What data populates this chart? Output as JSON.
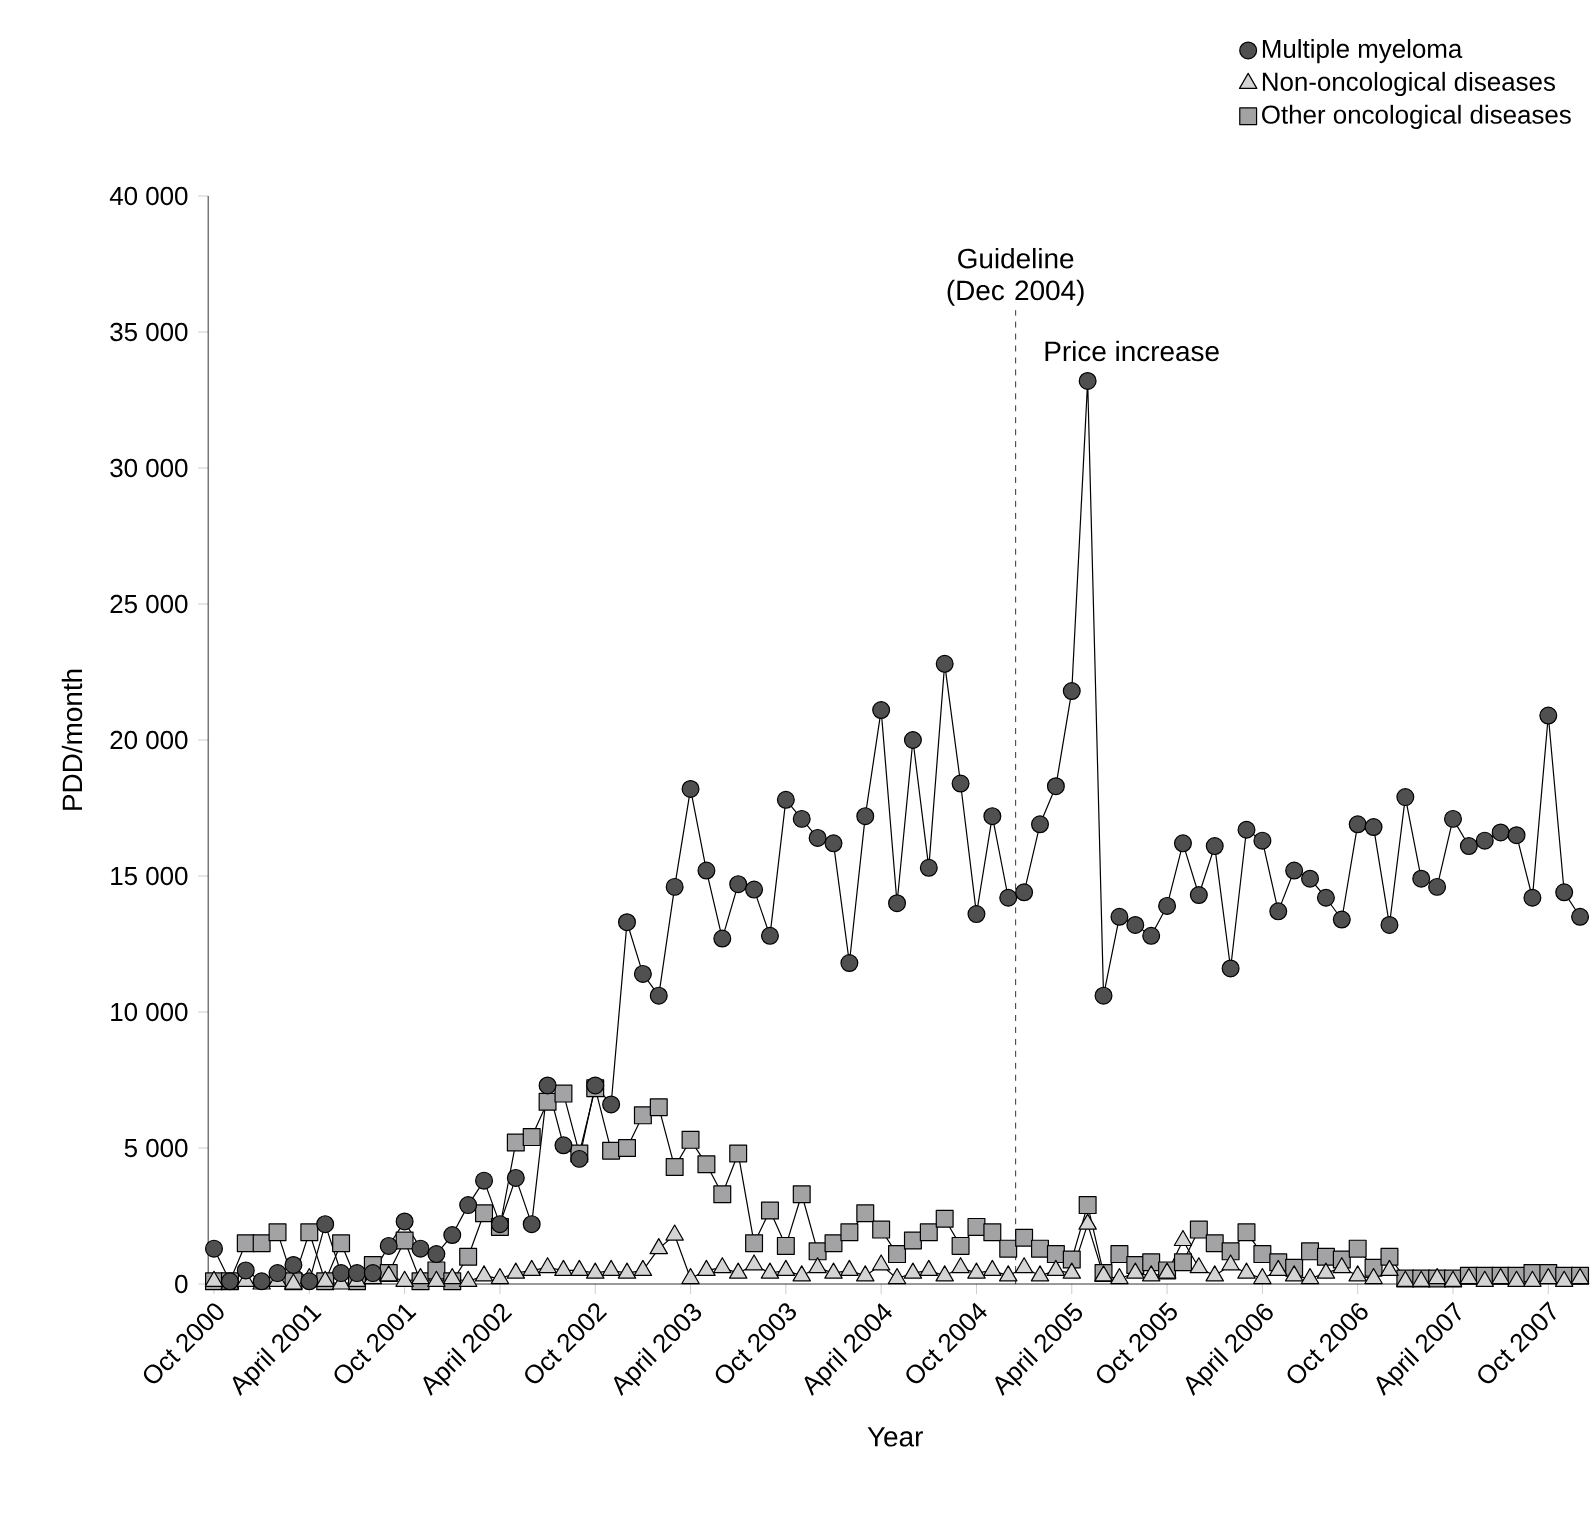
{
  "chart_data": {
    "type": "line",
    "xlabel": "Year",
    "ylabel": "PDD/month",
    "x": [
      "2000-10",
      "2000-11",
      "2000-12",
      "2001-01",
      "2001-02",
      "2001-03",
      "2001-04",
      "2001-05",
      "2001-06",
      "2001-07",
      "2001-08",
      "2001-09",
      "2001-10",
      "2001-11",
      "2001-12",
      "2002-01",
      "2002-02",
      "2002-03",
      "2002-04",
      "2002-05",
      "2002-06",
      "2002-07",
      "2002-08",
      "2002-09",
      "2002-10",
      "2002-11",
      "2002-12",
      "2003-01",
      "2003-02",
      "2003-03",
      "2003-04",
      "2003-05",
      "2003-06",
      "2003-07",
      "2003-08",
      "2003-09",
      "2003-10",
      "2003-11",
      "2003-12",
      "2004-01",
      "2004-02",
      "2004-03",
      "2004-04",
      "2004-05",
      "2004-06",
      "2004-07",
      "2004-08",
      "2004-09",
      "2004-10",
      "2004-11",
      "2004-12",
      "2005-01",
      "2005-02",
      "2005-03",
      "2005-04",
      "2005-05",
      "2005-06",
      "2005-07",
      "2005-08",
      "2005-09",
      "2005-10",
      "2005-11",
      "2005-12",
      "2006-01",
      "2006-02",
      "2006-03",
      "2006-04",
      "2006-05",
      "2006-06",
      "2006-07",
      "2006-08",
      "2006-09",
      "2006-10",
      "2006-11",
      "2006-12",
      "2007-01",
      "2007-02",
      "2007-03",
      "2007-04",
      "2007-05",
      "2007-06",
      "2007-07",
      "2007-08",
      "2007-09",
      "2007-10",
      "2007-11",
      "2007-12"
    ],
    "series": [
      {
        "name": "Multiple myeloma",
        "color": "#505050",
        "marker": "circle",
        "values": [
          1300,
          100,
          500,
          100,
          400,
          700,
          100,
          2200,
          400,
          400,
          400,
          1400,
          2300,
          1300,
          1100,
          1800,
          2900,
          3800,
          2200,
          3900,
          2200,
          7300,
          5100,
          4600,
          7300,
          6600,
          13300,
          11400,
          10600,
          14600,
          18200,
          15200,
          12700,
          14700,
          14500,
          12800,
          17800,
          17100,
          16400,
          16200,
          11800,
          17200,
          21100,
          14000,
          20000,
          15300,
          22800,
          18400,
          13600,
          17200,
          14200,
          14400,
          16900,
          18300,
          21800,
          33200,
          10600,
          13500,
          13200,
          12800,
          13900,
          16200,
          14300,
          16100,
          11600,
          16700,
          16300,
          13700,
          15200,
          14900,
          14200,
          13400,
          16900,
          16800,
          13200,
          17900,
          14900,
          14600,
          17100,
          16100,
          16300,
          16600,
          16500,
          14200,
          20900,
          14400,
          13500
        ]
      },
      {
        "name": "Non-oncological diseases",
        "color": "#d4d4d4",
        "marker": "triangle",
        "values": [
          100,
          0,
          100,
          0,
          100,
          0,
          200,
          100,
          0,
          100,
          200,
          300,
          100,
          200,
          100,
          200,
          100,
          300,
          200,
          400,
          500,
          600,
          500,
          500,
          400,
          500,
          400,
          500,
          1300,
          1800,
          200,
          500,
          600,
          400,
          700,
          400,
          500,
          300,
          600,
          400,
          500,
          300,
          700,
          200,
          400,
          500,
          300,
          600,
          400,
          500,
          300,
          600,
          300,
          500,
          400,
          2200,
          300,
          200,
          400,
          300,
          400,
          1600,
          600,
          300,
          700,
          400,
          200,
          500,
          300,
          200,
          400,
          600,
          300,
          200,
          500,
          100,
          100,
          200,
          100,
          200,
          100,
          200,
          100,
          100,
          200,
          100,
          200
        ]
      },
      {
        "name": "Other oncological diseases",
        "color": "#a3a3a5",
        "marker": "square",
        "values": [
          100,
          100,
          1500,
          1500,
          1900,
          100,
          1900,
          100,
          1500,
          100,
          700,
          400,
          1600,
          100,
          500,
          100,
          1000,
          2600,
          2100,
          5200,
          5400,
          6700,
          7000,
          4800,
          7200,
          4900,
          5000,
          6200,
          6500,
          4300,
          5300,
          4400,
          3300,
          4800,
          1500,
          2700,
          1400,
          3300,
          1200,
          1500,
          1900,
          2600,
          2000,
          1100,
          1600,
          1900,
          2400,
          1400,
          2100,
          1900,
          1300,
          1700,
          1300,
          1100,
          900,
          2900,
          400,
          1100,
          700,
          800,
          500,
          800,
          2000,
          1500,
          1200,
          1900,
          1100,
          800,
          600,
          1200,
          1000,
          900,
          1300,
          600,
          1000,
          200,
          200,
          200,
          200,
          300,
          300,
          300,
          300,
          400,
          400,
          300,
          300
        ]
      }
    ],
    "xlim": [
      "2000-09-20",
      "2007-12-05"
    ],
    "xticks": [
      {
        "value": "2000-10",
        "label": "Oct 2000"
      },
      {
        "value": "2001-04",
        "label": "April 2001"
      },
      {
        "value": "2001-10",
        "label": "Oct 2001"
      },
      {
        "value": "2002-04",
        "label": "April 2002"
      },
      {
        "value": "2002-10",
        "label": "Oct 2002"
      },
      {
        "value": "2003-04",
        "label": "April 2003"
      },
      {
        "value": "2003-10",
        "label": "Oct 2003"
      },
      {
        "value": "2004-04",
        "label": "April 2004"
      },
      {
        "value": "2004-10",
        "label": "Oct 2004"
      },
      {
        "value": "2005-04",
        "label": "April 2005"
      },
      {
        "value": "2005-10",
        "label": "Oct 2005"
      },
      {
        "value": "2006-04",
        "label": "April 2006"
      },
      {
        "value": "2006-10",
        "label": "Oct 2006"
      },
      {
        "value": "2007-04",
        "label": "April 2007"
      },
      {
        "value": "2007-10",
        "label": "Oct 2007"
      }
    ],
    "ylim": [
      0,
      40000
    ],
    "yticks": [
      0,
      {
        "value": 5000,
        "label": "5 000"
      },
      {
        "value": 10000,
        "label": "10 000"
      },
      {
        "value": 15000,
        "label": "15 000"
      },
      {
        "value": 20000,
        "label": "20 000"
      },
      {
        "value": 25000,
        "label": "25 000"
      },
      {
        "value": 30000,
        "label": "30 000"
      },
      {
        "value": 35000,
        "label": "35 000"
      },
      {
        "value": 40000,
        "label": "40 000"
      }
    ],
    "ref_lines": [
      {
        "axis": "x",
        "value": "2004-12-15",
        "label": "Guideline (Dec 2004)",
        "line_style": "dashed"
      }
    ],
    "annotations": [
      {
        "text": "Price increase",
        "x": "2005-05",
        "y": 33200
      }
    ],
    "legend": "top right"
  }
}
